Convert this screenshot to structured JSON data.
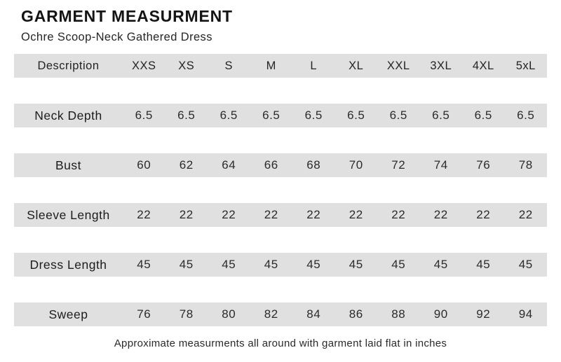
{
  "header": {
    "title": "GARMENT MEASURMENT",
    "subtitle": "Ochre Scoop-Neck Gathered Dress"
  },
  "colors": {
    "row_band": "#e0e0e0",
    "text": "#1f1f1f",
    "background": "#ffffff"
  },
  "table": {
    "columns": [
      "Description",
      "XXS",
      "XS",
      "S",
      "M",
      "L",
      "XL",
      "XXL",
      "3XL",
      "4XL",
      "5xL"
    ],
    "rows": [
      {
        "label": "Neck Depth",
        "values": [
          "6.5",
          "6.5",
          "6.5",
          "6.5",
          "6.5",
          "6.5",
          "6.5",
          "6.5",
          "6.5",
          "6.5"
        ]
      },
      {
        "label": "Bust",
        "values": [
          "60",
          "62",
          "64",
          "66",
          "68",
          "70",
          "72",
          "74",
          "76",
          "78"
        ]
      },
      {
        "label": "Sleeve Length",
        "values": [
          "22",
          "22",
          "22",
          "22",
          "22",
          "22",
          "22",
          "22",
          "22",
          "22"
        ]
      },
      {
        "label": "Dress Length",
        "values": [
          "45",
          "45",
          "45",
          "45",
          "45",
          "45",
          "45",
          "45",
          "45",
          "45"
        ]
      },
      {
        "label": "Sweep",
        "values": [
          "76",
          "78",
          "80",
          "82",
          "84",
          "86",
          "88",
          "90",
          "92",
          "94"
        ]
      }
    ]
  },
  "footer": {
    "note": "Approximate measurments all around with garment laid flat in inches"
  }
}
